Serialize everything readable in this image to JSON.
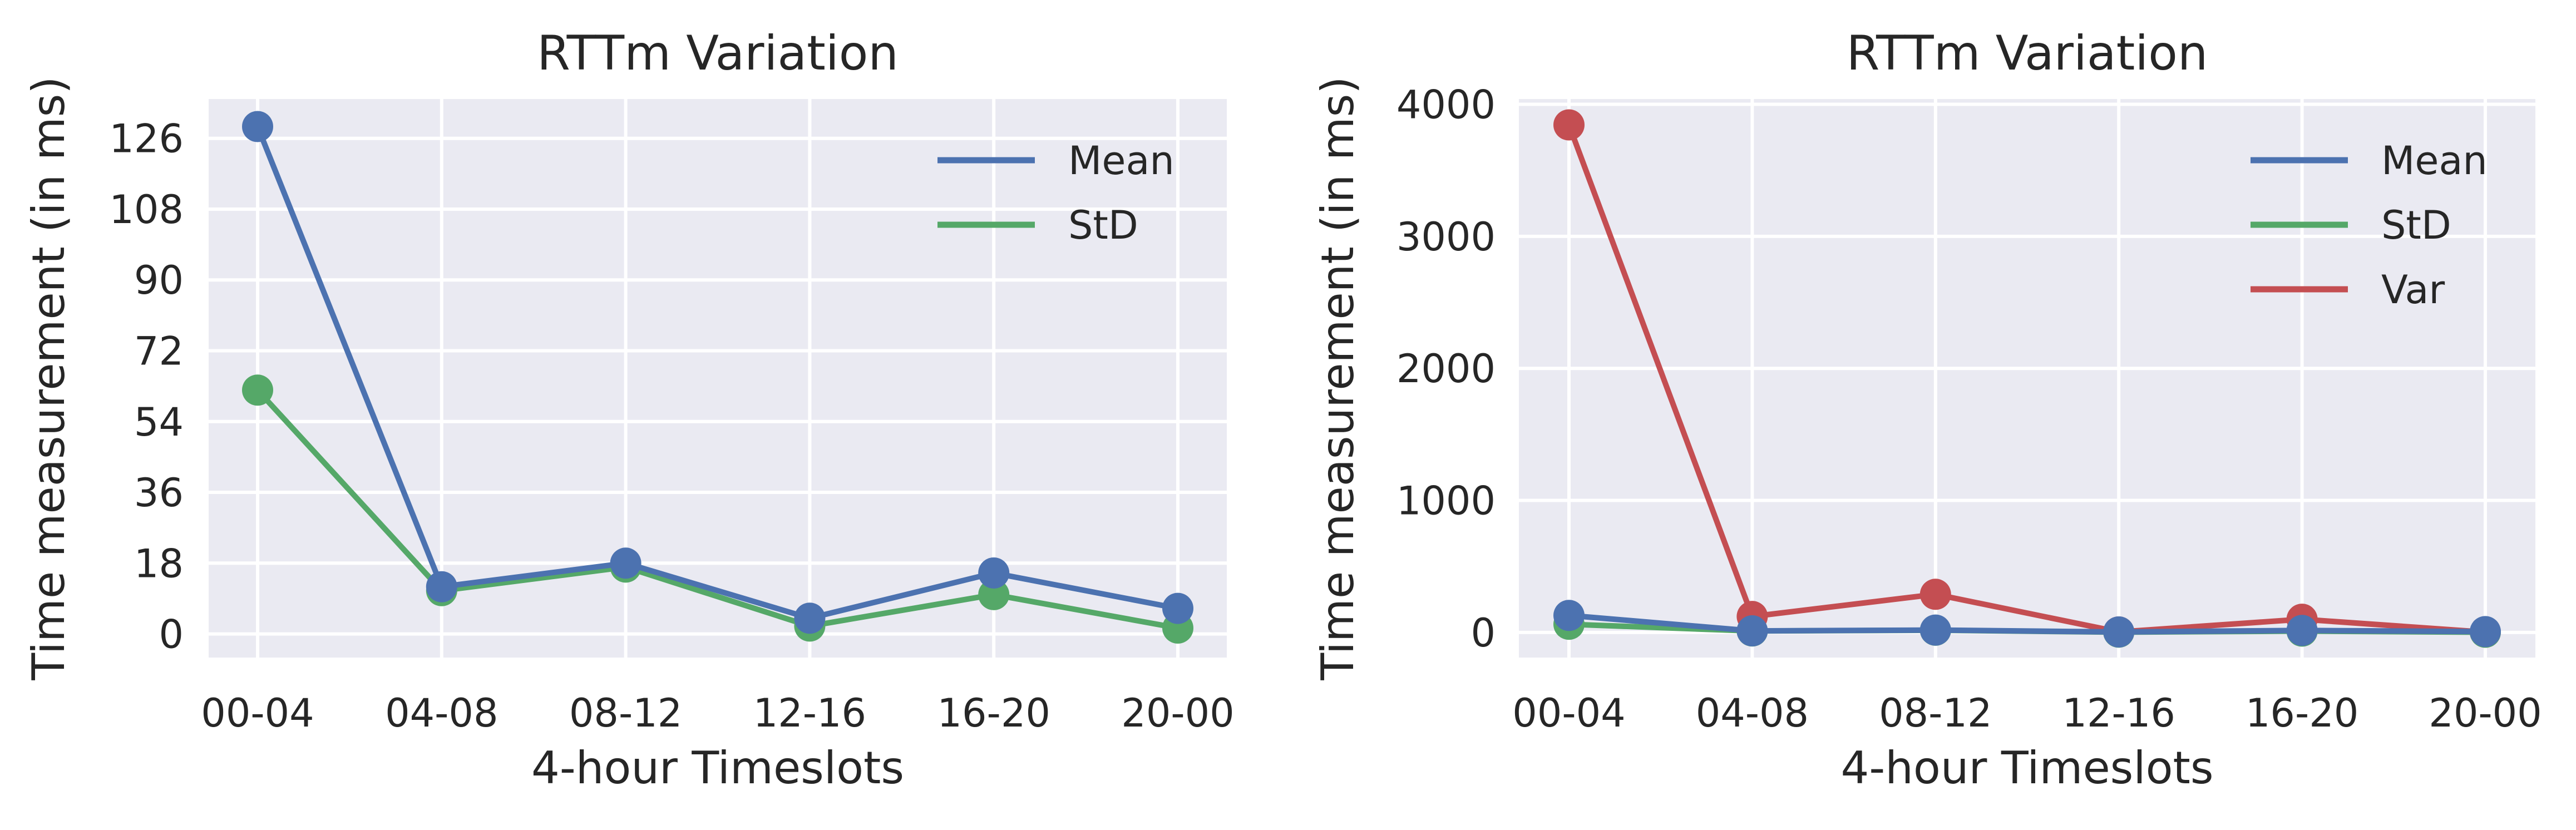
{
  "chart_data": [
    {
      "type": "line",
      "title": "RTTm Variation",
      "xlabel": "4-hour Timeslots",
      "ylabel": "Time measurement (in ms)",
      "categories": [
        "00-04",
        "04-08",
        "08-12",
        "12-16",
        "16-20",
        "20-00"
      ],
      "yticks": [
        "0",
        "18",
        "36",
        "54",
        "72",
        "90",
        "108",
        "126"
      ],
      "ylim": [
        -6,
        136
      ],
      "grid": true,
      "legend_position": "top-right",
      "series": [
        {
          "name": "Mean",
          "color": "#4c72b0",
          "values": [
            129,
            12,
            18,
            4,
            15.5,
            6.5
          ]
        },
        {
          "name": "StD",
          "color": "#55a868",
          "values": [
            62,
            11,
            17,
            2,
            10,
            1.5
          ]
        }
      ]
    },
    {
      "type": "line",
      "title": "RTTm Variation",
      "xlabel": "4-hour Timeslots",
      "ylabel": "Time measurement (in ms)",
      "categories": [
        "00-04",
        "04-08",
        "08-12",
        "12-16",
        "16-20",
        "20-00"
      ],
      "yticks": [
        "0",
        "1000",
        "2000",
        "3000",
        "4000"
      ],
      "ylim": [
        -190,
        4040
      ],
      "grid": true,
      "legend_position": "top-right",
      "series": [
        {
          "name": "Mean",
          "color": "#4c72b0",
          "values": [
            129,
            12,
            18,
            4,
            15.5,
            6.5
          ]
        },
        {
          "name": "StD",
          "color": "#55a868",
          "values": [
            62,
            11,
            17,
            2,
            10,
            1.5
          ]
        },
        {
          "name": "Var",
          "color": "#c44e52",
          "values": [
            3844,
            121,
            289,
            4,
            100,
            2.25
          ]
        }
      ]
    }
  ]
}
